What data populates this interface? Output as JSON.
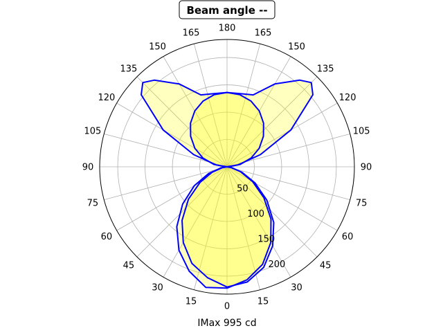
{
  "chart_data": {
    "type": "polar",
    "title": "Beam angle --",
    "xlabel": "IMax 995 cd",
    "angle_tick_labels": [
      "0",
      "15",
      "30",
      "45",
      "60",
      "75",
      "90",
      "105",
      "120",
      "135",
      "150",
      "165",
      "180"
    ],
    "radial_ticks": [
      50,
      100,
      150,
      200
    ],
    "rlim": [
      0,
      233
    ],
    "grid": true,
    "colors": {
      "line": "#0000ff",
      "fill": "#ffff00",
      "grid": "#b0b0b0"
    },
    "series": [
      {
        "angles": [
          -180,
          -170,
          -160,
          -150,
          -140,
          -130,
          -120,
          -110,
          -100,
          -90,
          -80,
          -70,
          -60,
          -50,
          -40,
          -30,
          -20,
          -10,
          0,
          10,
          20,
          30,
          40,
          50,
          60,
          70,
          80,
          90,
          100,
          110,
          120,
          130,
          140,
          150,
          160,
          170,
          180
        ],
        "values": [
          136,
          134,
          128,
          118,
          104,
          87,
          68,
          47,
          24,
          0,
          8,
          29,
          57,
          92,
          128,
          160,
          188,
          206,
          220,
          214,
          196,
          167,
          133,
          95,
          59,
          29,
          8,
          0,
          24,
          47,
          68,
          87,
          104,
          118,
          128,
          134,
          136
        ]
      },
      {
        "angles": [
          -180,
          -170,
          -160,
          -150,
          -140,
          -135,
          -130,
          -120,
          -110,
          -100,
          -90,
          -80,
          -70,
          -60,
          -50,
          -40,
          -30,
          -20,
          -10,
          0,
          10,
          20,
          30,
          40,
          50,
          60,
          70,
          80,
          90,
          100,
          110,
          120,
          130,
          135,
          140,
          150,
          160,
          170,
          180
        ],
        "values": [
          136,
          136,
          140,
          175,
          207,
          218,
          205,
          135,
          65,
          20,
          0,
          11,
          36,
          69,
          106,
          143,
          176,
          203,
          224,
          222,
          210,
          190,
          160,
          125,
          88,
          54,
          26,
          7,
          0,
          20,
          65,
          135,
          205,
          218,
          207,
          175,
          140,
          136,
          136
        ]
      }
    ]
  }
}
